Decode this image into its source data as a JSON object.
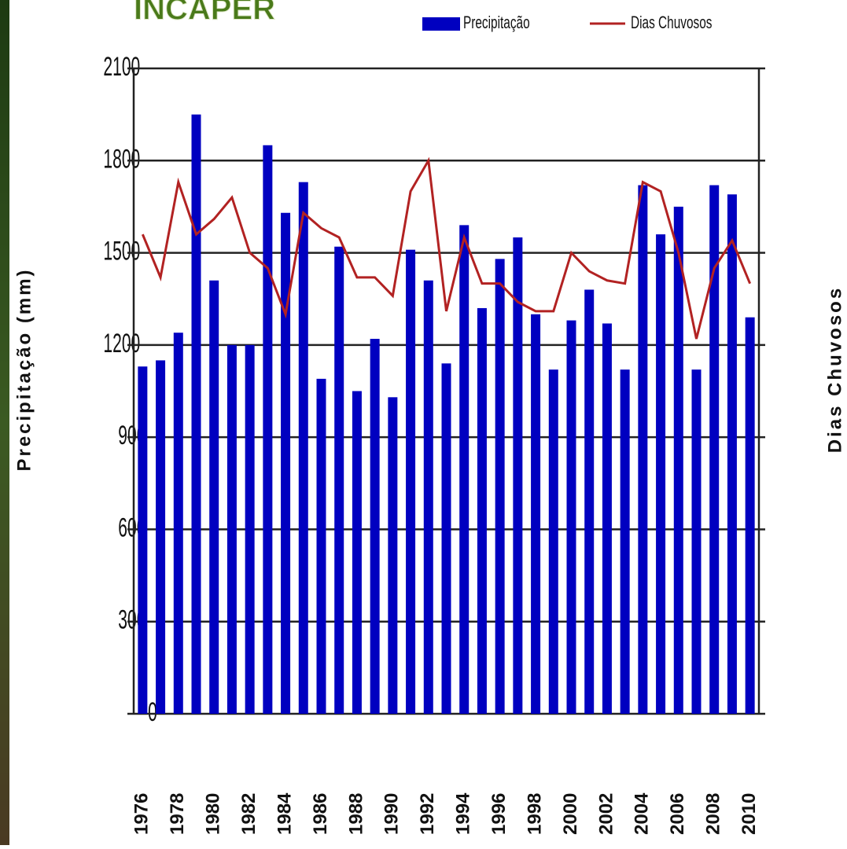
{
  "chart_data": {
    "type": "bar",
    "title": "INCAPER",
    "y_label": "Precipitação (mm)",
    "y2_label": "Dias Chuvosos",
    "categories": [
      "1976",
      null,
      "1978",
      null,
      "1980",
      null,
      "1982",
      null,
      "1984",
      null,
      "1986",
      null,
      "1988",
      null,
      "1990",
      null,
      "1992",
      null,
      "1994",
      null,
      "1996",
      null,
      "1998",
      null,
      "2000",
      null,
      "2002",
      null,
      "2004",
      null,
      "2006",
      null,
      "2008",
      null,
      "2010"
    ],
    "series": [
      {
        "name": "Precipitação",
        "type": "bar",
        "color": "#0000c0",
        "values": [
          1130,
          1150,
          1240,
          1950,
          1410,
          1200,
          1200,
          1850,
          1630,
          1730,
          1090,
          1520,
          1050,
          1220,
          1030,
          1510,
          1410,
          1140,
          1590,
          1320,
          1480,
          1550,
          1300,
          1120,
          1280,
          1380,
          1270,
          1120,
          1720,
          1560,
          1650,
          1120,
          1720,
          1690,
          1290
        ]
      },
      {
        "name": "Dias Chuvosos",
        "type": "line",
        "axis": "y2",
        "color": "#b22222",
        "values": [
          156,
          142,
          173,
          156,
          161,
          168,
          150,
          145,
          130,
          163,
          158,
          155,
          142,
          142,
          136,
          170,
          180,
          131,
          155,
          140,
          140,
          134,
          131,
          131,
          150,
          144,
          141,
          140,
          173,
          170,
          150,
          122,
          145,
          154,
          140
        ]
      }
    ],
    "ylim": [
      0,
      2100
    ],
    "yticks": [
      0,
      300,
      600,
      900,
      1200,
      1500,
      1800,
      2100
    ],
    "y2lim": [
      0,
      210
    ],
    "y2ticks": [
      0,
      30,
      60,
      90,
      120,
      150,
      180,
      210
    ],
    "grid": true
  }
}
